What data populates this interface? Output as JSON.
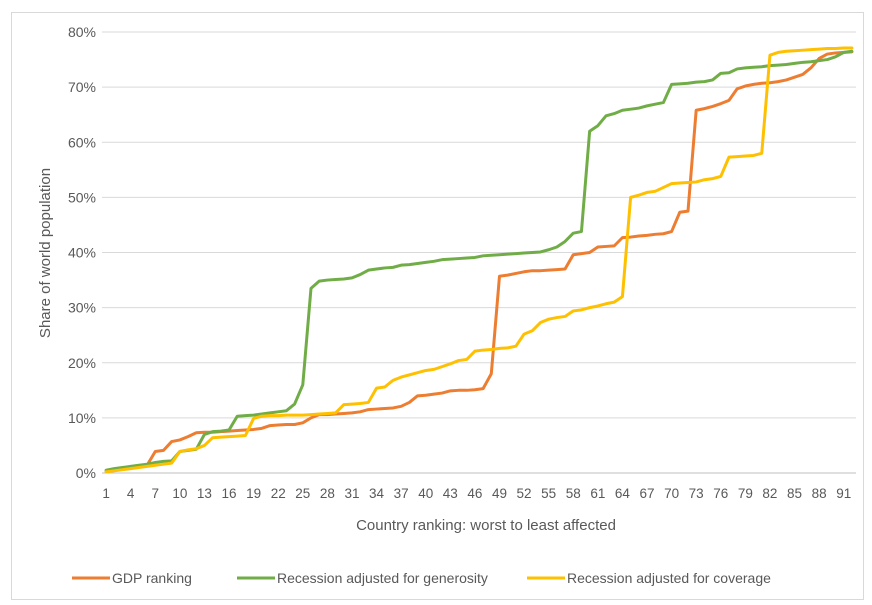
{
  "chart_data": {
    "type": "line",
    "xlabel": "Country ranking: worst to least affected",
    "ylabel": "Share of world population",
    "x": [
      1,
      2,
      3,
      4,
      5,
      6,
      7,
      8,
      9,
      10,
      11,
      12,
      13,
      14,
      15,
      16,
      17,
      18,
      19,
      20,
      21,
      22,
      23,
      24,
      25,
      26,
      27,
      28,
      29,
      30,
      31,
      32,
      33,
      34,
      35,
      36,
      37,
      38,
      39,
      40,
      41,
      42,
      43,
      44,
      45,
      46,
      47,
      48,
      49,
      50,
      51,
      52,
      53,
      54,
      55,
      56,
      57,
      58,
      59,
      60,
      61,
      62,
      63,
      64,
      65,
      66,
      67,
      68,
      69,
      70,
      71,
      72,
      73,
      74,
      75,
      76,
      77,
      78,
      79,
      80,
      81,
      82,
      83,
      84,
      85,
      86,
      87,
      88,
      89,
      90,
      91,
      92
    ],
    "x_tick_labels": [
      "1",
      "4",
      "7",
      "10",
      "13",
      "16",
      "19",
      "22",
      "25",
      "28",
      "31",
      "34",
      "37",
      "40",
      "43",
      "46",
      "49",
      "52",
      "55",
      "58",
      "61",
      "64",
      "67",
      "70",
      "73",
      "76",
      "79",
      "82",
      "85",
      "88",
      "91"
    ],
    "x_tick_values": [
      1,
      4,
      7,
      10,
      13,
      16,
      19,
      22,
      25,
      28,
      31,
      34,
      37,
      40,
      43,
      46,
      49,
      52,
      55,
      58,
      61,
      64,
      67,
      70,
      73,
      76,
      79,
      82,
      85,
      88,
      91
    ],
    "xlim": [
      0.5,
      92.5
    ],
    "ylim": [
      0,
      80
    ],
    "y_ticks": [
      0,
      10,
      20,
      30,
      40,
      50,
      60,
      70,
      80
    ],
    "y_tick_labels": [
      "0%",
      "10%",
      "20%",
      "30%",
      "40%",
      "50%",
      "60%",
      "70%",
      "80%"
    ],
    "grid": "horizontal",
    "legend_position": "bottom",
    "series": [
      {
        "name": "GDP ranking",
        "color": "#ED7D31",
        "values": [
          0.3,
          0.5,
          0.8,
          1.0,
          1.2,
          1.4,
          3.9,
          4.1,
          5.7,
          6.0,
          6.6,
          7.3,
          7.4,
          7.4,
          7.5,
          7.6,
          7.7,
          7.8,
          7.9,
          8.1,
          8.6,
          8.7,
          8.8,
          8.8,
          9.1,
          10.0,
          10.6,
          10.6,
          10.7,
          10.8,
          10.9,
          11.1,
          11.5,
          11.6,
          11.7,
          11.8,
          12.1,
          12.8,
          14.0,
          14.1,
          14.3,
          14.5,
          14.9,
          15.0,
          15.0,
          15.1,
          15.3,
          18.0,
          35.7,
          35.9,
          36.2,
          36.5,
          36.7,
          36.7,
          36.8,
          36.9,
          37.0,
          39.6,
          39.8,
          40.0,
          41.0,
          41.1,
          41.2,
          42.7,
          42.8,
          43.0,
          43.1,
          43.3,
          43.4,
          43.8,
          47.3,
          47.5,
          65.8,
          66.1,
          66.5,
          67.0,
          67.6,
          69.7,
          70.2,
          70.5,
          70.7,
          70.8,
          71.0,
          71.3,
          71.8,
          72.3,
          73.5,
          75.2,
          76.0,
          76.2,
          76.3,
          76.4
        ]
      },
      {
        "name": "Recession adjusted for generosity",
        "color": "#70AD47",
        "values": [
          0.5,
          0.8,
          1.0,
          1.2,
          1.4,
          1.6,
          1.9,
          2.1,
          2.2,
          3.9,
          4.1,
          4.3,
          7.0,
          7.5,
          7.6,
          7.8,
          10.3,
          10.4,
          10.5,
          10.7,
          10.9,
          11.1,
          11.3,
          12.5,
          16.0,
          33.5,
          34.8,
          35.0,
          35.1,
          35.2,
          35.4,
          36.0,
          36.8,
          37.0,
          37.2,
          37.3,
          37.7,
          37.8,
          38.0,
          38.2,
          38.4,
          38.7,
          38.8,
          38.9,
          39.0,
          39.1,
          39.4,
          39.5,
          39.6,
          39.7,
          39.8,
          39.9,
          40.0,
          40.1,
          40.5,
          41.0,
          42.0,
          43.5,
          43.8,
          62.0,
          63.0,
          64.8,
          65.2,
          65.8,
          66.0,
          66.2,
          66.6,
          66.9,
          67.2,
          70.5,
          70.6,
          70.7,
          70.9,
          71.0,
          71.3,
          72.5,
          72.6,
          73.3,
          73.5,
          73.6,
          73.7,
          73.9,
          74.0,
          74.1,
          74.3,
          74.5,
          74.6,
          74.8,
          75.0,
          75.5,
          76.3,
          76.5
        ]
      },
      {
        "name": "Recession adjusted for coverage",
        "color": "#FFC000",
        "values": [
          0.2,
          0.4,
          0.6,
          0.8,
          1.0,
          1.2,
          1.4,
          1.6,
          1.8,
          3.9,
          4.2,
          4.4,
          5.0,
          6.4,
          6.5,
          6.6,
          6.7,
          6.8,
          9.9,
          10.3,
          10.4,
          10.4,
          10.5,
          10.5,
          10.5,
          10.6,
          10.7,
          10.8,
          10.9,
          12.4,
          12.5,
          12.6,
          12.8,
          15.4,
          15.6,
          16.8,
          17.4,
          17.8,
          18.2,
          18.6,
          18.8,
          19.3,
          19.8,
          20.4,
          20.6,
          22.1,
          22.3,
          22.4,
          22.6,
          22.7,
          23.0,
          25.2,
          25.8,
          27.3,
          27.9,
          28.2,
          28.4,
          29.4,
          29.6,
          30.0,
          30.3,
          30.7,
          31.0,
          32.0,
          50.0,
          50.4,
          50.9,
          51.1,
          51.8,
          52.5,
          52.6,
          52.7,
          52.8,
          53.2,
          53.4,
          53.8,
          57.3,
          57.4,
          57.5,
          57.6,
          58.0,
          75.8,
          76.3,
          76.5,
          76.6,
          76.7,
          76.8,
          76.9,
          77.0,
          77.0,
          77.1,
          77.1
        ]
      }
    ]
  }
}
